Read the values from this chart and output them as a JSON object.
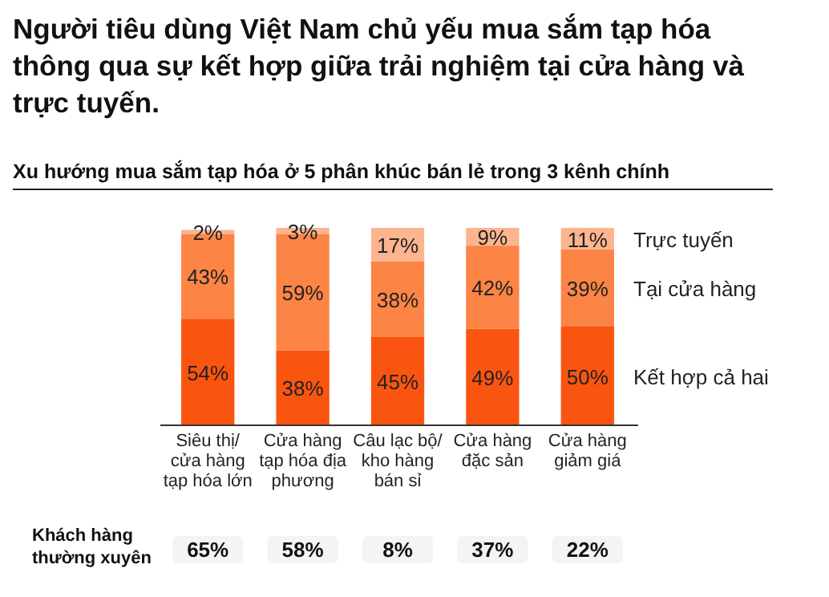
{
  "chart_data": {
    "type": "bar",
    "title": "Người tiêu dùng Việt Nam chủ yếu mua sắm tạp hóa\nthông qua sự kết hợp giữa trải nghiệm tại cửa hàng và\ntrực tuyến.",
    "subtitle": "Xu hướng mua sắm tạp hóa ở 5 phân khúc bán lẻ trong 3 kênh chính",
    "categories": [
      "Siêu thị/\ncửa hàng\ntạp hóa lớn",
      "Cửa hàng\ntạp hóa địa\nphương",
      "Câu lạc bộ/\nkho hàng\nbán sỉ",
      "Cửa hàng\nđặc sản",
      "Cửa hàng\ngiảm giá"
    ],
    "stacked": true,
    "legend": "right",
    "series": [
      {
        "name": "Kết hợp cả hai",
        "color": "#fa5510",
        "values": [
          54,
          38,
          45,
          49,
          50
        ],
        "value_labels": [
          "54%",
          "38%",
          "45%",
          "49%",
          "50%"
        ]
      },
      {
        "name": "Tại cửa hàng",
        "color": "#fc8444",
        "values": [
          43,
          59,
          38,
          42,
          39
        ],
        "value_labels": [
          "43%",
          "59%",
          "38%",
          "42%",
          "39%"
        ]
      },
      {
        "name": "Trực tuyến",
        "color": "#fdb58f",
        "values": [
          2,
          3,
          17,
          9,
          11
        ],
        "value_labels": [
          "2%",
          "3%",
          "17%",
          "9%",
          "11%"
        ]
      }
    ],
    "annotations": [
      "Khách hàng\nthường xuyên",
      "65%",
      "58%",
      "8%",
      "37%",
      "22%"
    ]
  }
}
